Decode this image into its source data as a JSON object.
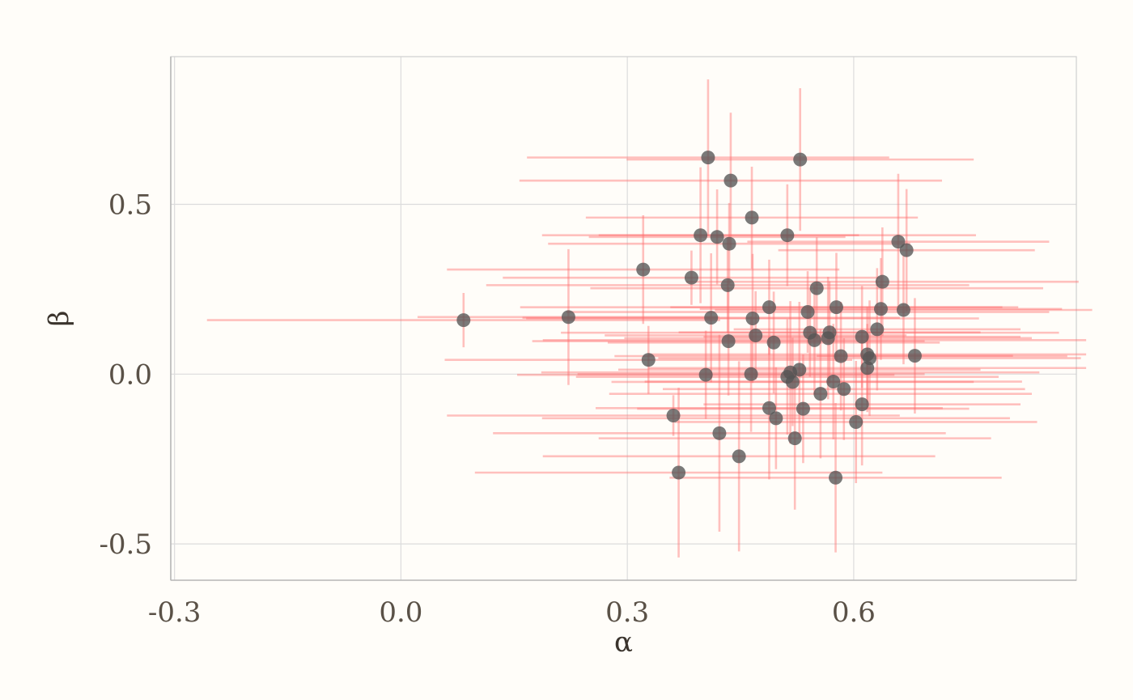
{
  "chart_data": {
    "type": "scatter",
    "title": "",
    "xlabel": "α",
    "ylabel": "β",
    "xlim": [
      -0.305,
      0.895
    ],
    "ylim": [
      -0.607,
      0.935
    ],
    "x_ticks": [
      -0.3,
      0.0,
      0.3,
      0.6
    ],
    "y_ticks": [
      -0.5,
      0.0,
      0.5
    ],
    "x_tick_labels": [
      "-0.3",
      "0.0",
      "0.3",
      "0.6"
    ],
    "y_tick_labels": [
      "-0.5",
      "0.0",
      "0.5"
    ],
    "grid": true,
    "point_color": "#555555",
    "errorbar_color": "#ff6b6b",
    "points": [
      {
        "x": 0.083,
        "y": 0.159,
        "xerr": 0.34,
        "yerr": 0.08
      },
      {
        "x": 0.222,
        "y": 0.168,
        "xerr": 0.2,
        "yerr": 0.2
      },
      {
        "x": 0.321,
        "y": 0.308,
        "xerr": 0.26,
        "yerr": 0.16
      },
      {
        "x": 0.328,
        "y": 0.042,
        "xerr": 0.27,
        "yerr": 0.1
      },
      {
        "x": 0.361,
        "y": -0.122,
        "xerr": 0.3,
        "yerr": 0.06
      },
      {
        "x": 0.368,
        "y": -0.29,
        "xerr": 0.27,
        "yerr": 0.25
      },
      {
        "x": 0.385,
        "y": 0.284,
        "xerr": 0.25,
        "yerr": 0.08
      },
      {
        "x": 0.397,
        "y": 0.409,
        "xerr": 0.21,
        "yerr": 0.2
      },
      {
        "x": 0.404,
        "y": -0.002,
        "xerr": 0.25,
        "yerr": 0.13
      },
      {
        "x": 0.407,
        "y": 0.638,
        "xerr": 0.24,
        "yerr": 0.23
      },
      {
        "x": 0.411,
        "y": 0.166,
        "xerr": 0.25,
        "yerr": 0.19
      },
      {
        "x": 0.419,
        "y": 0.404,
        "xerr": 0.17,
        "yerr": 0.14
      },
      {
        "x": 0.422,
        "y": -0.174,
        "xerr": 0.3,
        "yerr": 0.29
      },
      {
        "x": 0.433,
        "y": 0.262,
        "xerr": 0.32,
        "yerr": 0.14
      },
      {
        "x": 0.434,
        "y": 0.097,
        "xerr": 0.26,
        "yerr": 0.16
      },
      {
        "x": 0.435,
        "y": 0.384,
        "xerr": 0.24,
        "yerr": 0.12
      },
      {
        "x": 0.437,
        "y": 0.57,
        "xerr": 0.28,
        "yerr": 0.2
      },
      {
        "x": 0.448,
        "y": -0.242,
        "xerr": 0.26,
        "yerr": 0.28
      },
      {
        "x": 0.464,
        "y": 0.0,
        "xerr": 0.23,
        "yerr": 0.17
      },
      {
        "x": 0.465,
        "y": 0.461,
        "xerr": 0.22,
        "yerr": 0.15
      },
      {
        "x": 0.466,
        "y": 0.164,
        "xerr": 0.3,
        "yerr": 0.19
      },
      {
        "x": 0.47,
        "y": 0.114,
        "xerr": 0.2,
        "yerr": 0.13
      },
      {
        "x": 0.488,
        "y": -0.1,
        "xerr": 0.23,
        "yerr": 0.21
      },
      {
        "x": 0.488,
        "y": 0.197,
        "xerr": 0.33,
        "yerr": 0.14
      },
      {
        "x": 0.494,
        "y": 0.093,
        "xerr": 0.22,
        "yerr": 0.15
      },
      {
        "x": 0.497,
        "y": -0.13,
        "xerr": 0.31,
        "yerr": 0.15
      },
      {
        "x": 0.512,
        "y": 0.409,
        "xerr": 0.25,
        "yerr": 0.15
      },
      {
        "x": 0.512,
        "y": -0.008,
        "xerr": 0.28,
        "yerr": 0.17
      },
      {
        "x": 0.516,
        "y": 0.005,
        "xerr": 0.33,
        "yerr": 0.21
      },
      {
        "x": 0.519,
        "y": -0.023,
        "xerr": 0.24,
        "yerr": 0.13
      },
      {
        "x": 0.522,
        "y": -0.189,
        "xerr": 0.26,
        "yerr": 0.21
      },
      {
        "x": 0.528,
        "y": 0.013,
        "xerr": 0.24,
        "yerr": 0.2
      },
      {
        "x": 0.529,
        "y": 0.632,
        "xerr": 0.23,
        "yerr": 0.21
      },
      {
        "x": 0.533,
        "y": -0.102,
        "xerr": 0.22,
        "yerr": 0.16
      },
      {
        "x": 0.539,
        "y": 0.183,
        "xerr": 0.32,
        "yerr": 0.12
      },
      {
        "x": 0.542,
        "y": 0.122,
        "xerr": 0.33,
        "yerr": 0.13
      },
      {
        "x": 0.548,
        "y": 0.1,
        "xerr": 0.36,
        "yerr": 0.16
      },
      {
        "x": 0.551,
        "y": 0.253,
        "xerr": 0.3,
        "yerr": 0.15
      },
      {
        "x": 0.556,
        "y": -0.058,
        "xerr": 0.28,
        "yerr": 0.19
      },
      {
        "x": 0.566,
        "y": 0.106,
        "xerr": 0.27,
        "yerr": 0.18
      },
      {
        "x": 0.568,
        "y": 0.123,
        "xerr": 0.2,
        "yerr": 0.15
      },
      {
        "x": 0.573,
        "y": -0.022,
        "xerr": 0.25,
        "yerr": 0.17
      },
      {
        "x": 0.576,
        "y": -0.305,
        "xerr": 0.22,
        "yerr": 0.22
      },
      {
        "x": 0.577,
        "y": 0.197,
        "xerr": 0.22,
        "yerr": 0.16
      },
      {
        "x": 0.583,
        "y": 0.053,
        "xerr": 0.3,
        "yerr": 0.16
      },
      {
        "x": 0.587,
        "y": -0.044,
        "xerr": 0.24,
        "yerr": 0.15
      },
      {
        "x": 0.603,
        "y": -0.141,
        "xerr": 0.24,
        "yerr": 0.18
      },
      {
        "x": 0.611,
        "y": 0.11,
        "xerr": 0.21,
        "yerr": 0.15
      },
      {
        "x": 0.611,
        "y": -0.089,
        "xerr": 0.21,
        "yerr": 0.18
      },
      {
        "x": 0.618,
        "y": 0.058,
        "xerr": 0.29,
        "yerr": 0.14
      },
      {
        "x": 0.618,
        "y": 0.018,
        "xerr": 0.29,
        "yerr": 0.13
      },
      {
        "x": 0.621,
        "y": 0.047,
        "xerr": 0.28,
        "yerr": 0.17
      },
      {
        "x": 0.631,
        "y": 0.132,
        "xerr": 0.19,
        "yerr": 0.18
      },
      {
        "x": 0.636,
        "y": 0.192,
        "xerr": 0.24,
        "yerr": 0.15
      },
      {
        "x": 0.638,
        "y": 0.272,
        "xerr": 0.26,
        "yerr": 0.16
      },
      {
        "x": 0.659,
        "y": 0.39,
        "xerr": 0.2,
        "yerr": 0.2
      },
      {
        "x": 0.666,
        "y": 0.189,
        "xerr": 0.25,
        "yerr": 0.16
      },
      {
        "x": 0.67,
        "y": 0.365,
        "xerr": 0.17,
        "yerr": 0.18
      },
      {
        "x": 0.681,
        "y": 0.054,
        "xerr": 0.13,
        "yerr": 0.17
      }
    ]
  }
}
